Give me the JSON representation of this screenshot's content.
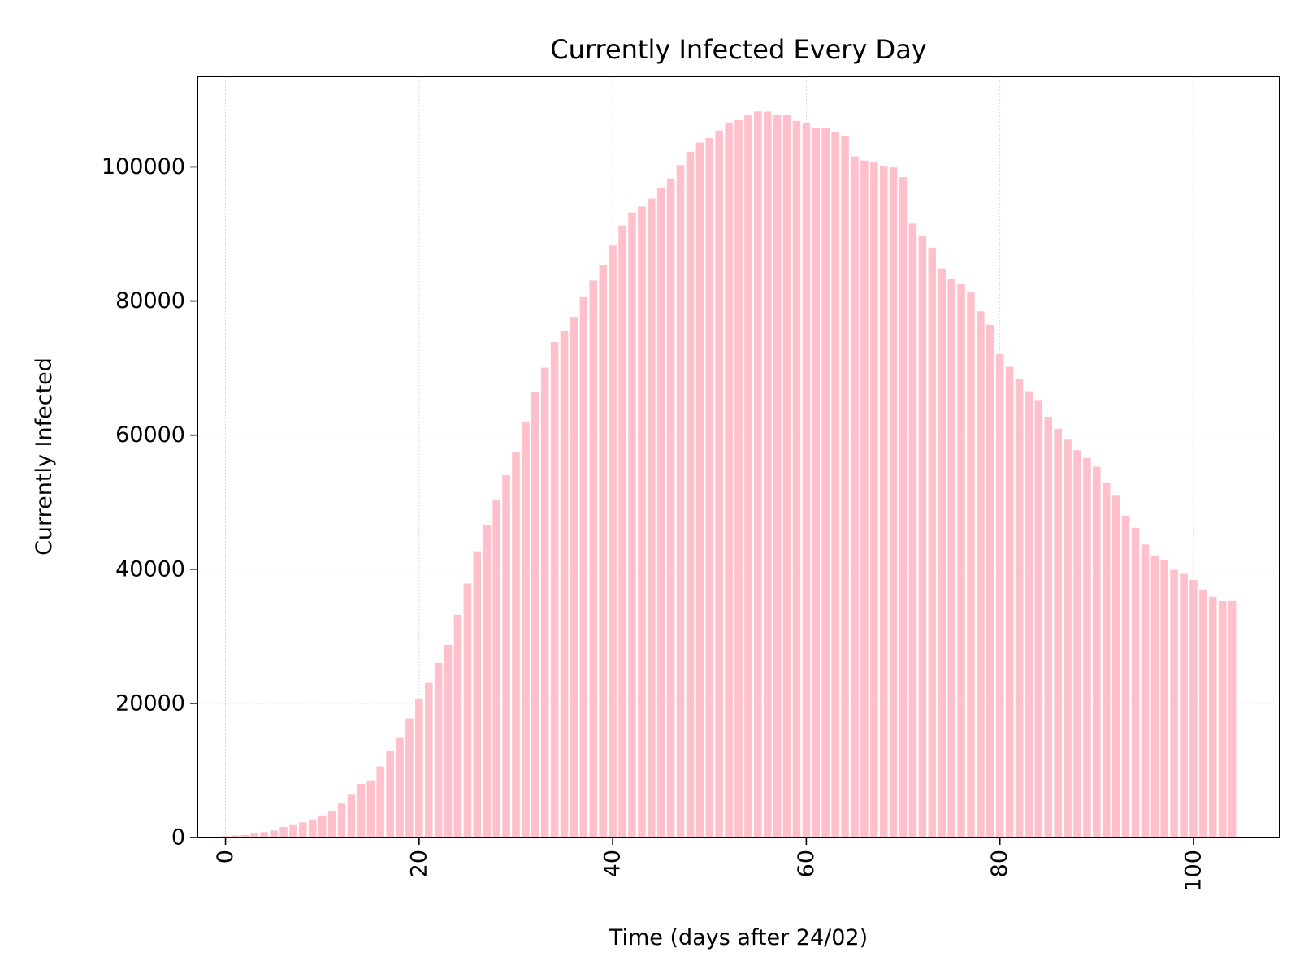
{
  "chart_data": {
    "type": "bar",
    "title": "Currently Infected Every Day",
    "xlabel": "Time (days after 24/02)",
    "ylabel": "Currently Infected",
    "xlim": [
      -2.9,
      108.9
    ],
    "ylim": [
      0,
      113500
    ],
    "x_ticks": [
      0,
      20,
      40,
      60,
      80,
      100
    ],
    "y_ticks": [
      0,
      20000,
      40000,
      60000,
      80000,
      100000
    ],
    "x_tick_rotation": "vertical",
    "grid": true,
    "bar_color": "#ffc0cb",
    "x": [
      0,
      1,
      2,
      3,
      4,
      5,
      6,
      7,
      8,
      9,
      10,
      11,
      12,
      13,
      14,
      15,
      16,
      17,
      18,
      19,
      20,
      21,
      22,
      23,
      24,
      25,
      26,
      27,
      28,
      29,
      30,
      31,
      32,
      33,
      34,
      35,
      36,
      37,
      38,
      39,
      40,
      41,
      42,
      43,
      44,
      45,
      46,
      47,
      48,
      49,
      50,
      51,
      52,
      53,
      54,
      55,
      56,
      57,
      58,
      59,
      60,
      61,
      62,
      63,
      64,
      65,
      66,
      67,
      68,
      69,
      70,
      71,
      72,
      73,
      74,
      75,
      76,
      77,
      78,
      79,
      80,
      81,
      82,
      83,
      84,
      85,
      86,
      87,
      88,
      89,
      90,
      91,
      92,
      93,
      94,
      95,
      96,
      97,
      98,
      99,
      100,
      101,
      102,
      103,
      104
    ],
    "values": [
      221,
      311,
      385,
      588,
      821,
      1049,
      1577,
      1835,
      2263,
      2706,
      3296,
      3916,
      5061,
      6387,
      7985,
      8514,
      10590,
      12839,
      14955,
      17750,
      20603,
      23073,
      26062,
      28710,
      33190,
      37860,
      42681,
      46638,
      50418,
      54030,
      57521,
      62013,
      66414,
      70065,
      73880,
      75528,
      77635,
      80572,
      83049,
      85388,
      88274,
      91246,
      93187,
      94067,
      95262,
      96877,
      98273,
      100269,
      102253,
      103616,
      104291,
      105418,
      106607,
      106962,
      107771,
      108257,
      108237,
      107709,
      107699,
      106848,
      106527,
      105813,
      105847,
      105205,
      104657,
      101551,
      100943,
      100704,
      100179,
      99980,
      98467,
      91528,
      89624,
      87961,
      84842,
      83324,
      82488,
      81266,
      78457,
      76440,
      72070,
      70187,
      68351,
      66553,
      65129,
      62752,
      60960,
      59322,
      57752,
      56594,
      55300,
      52942,
      50966,
      47986,
      46175,
      43691,
      42075,
      41367,
      39893,
      39297,
      38429,
      36976,
      35877,
      35262,
      35262
    ]
  }
}
